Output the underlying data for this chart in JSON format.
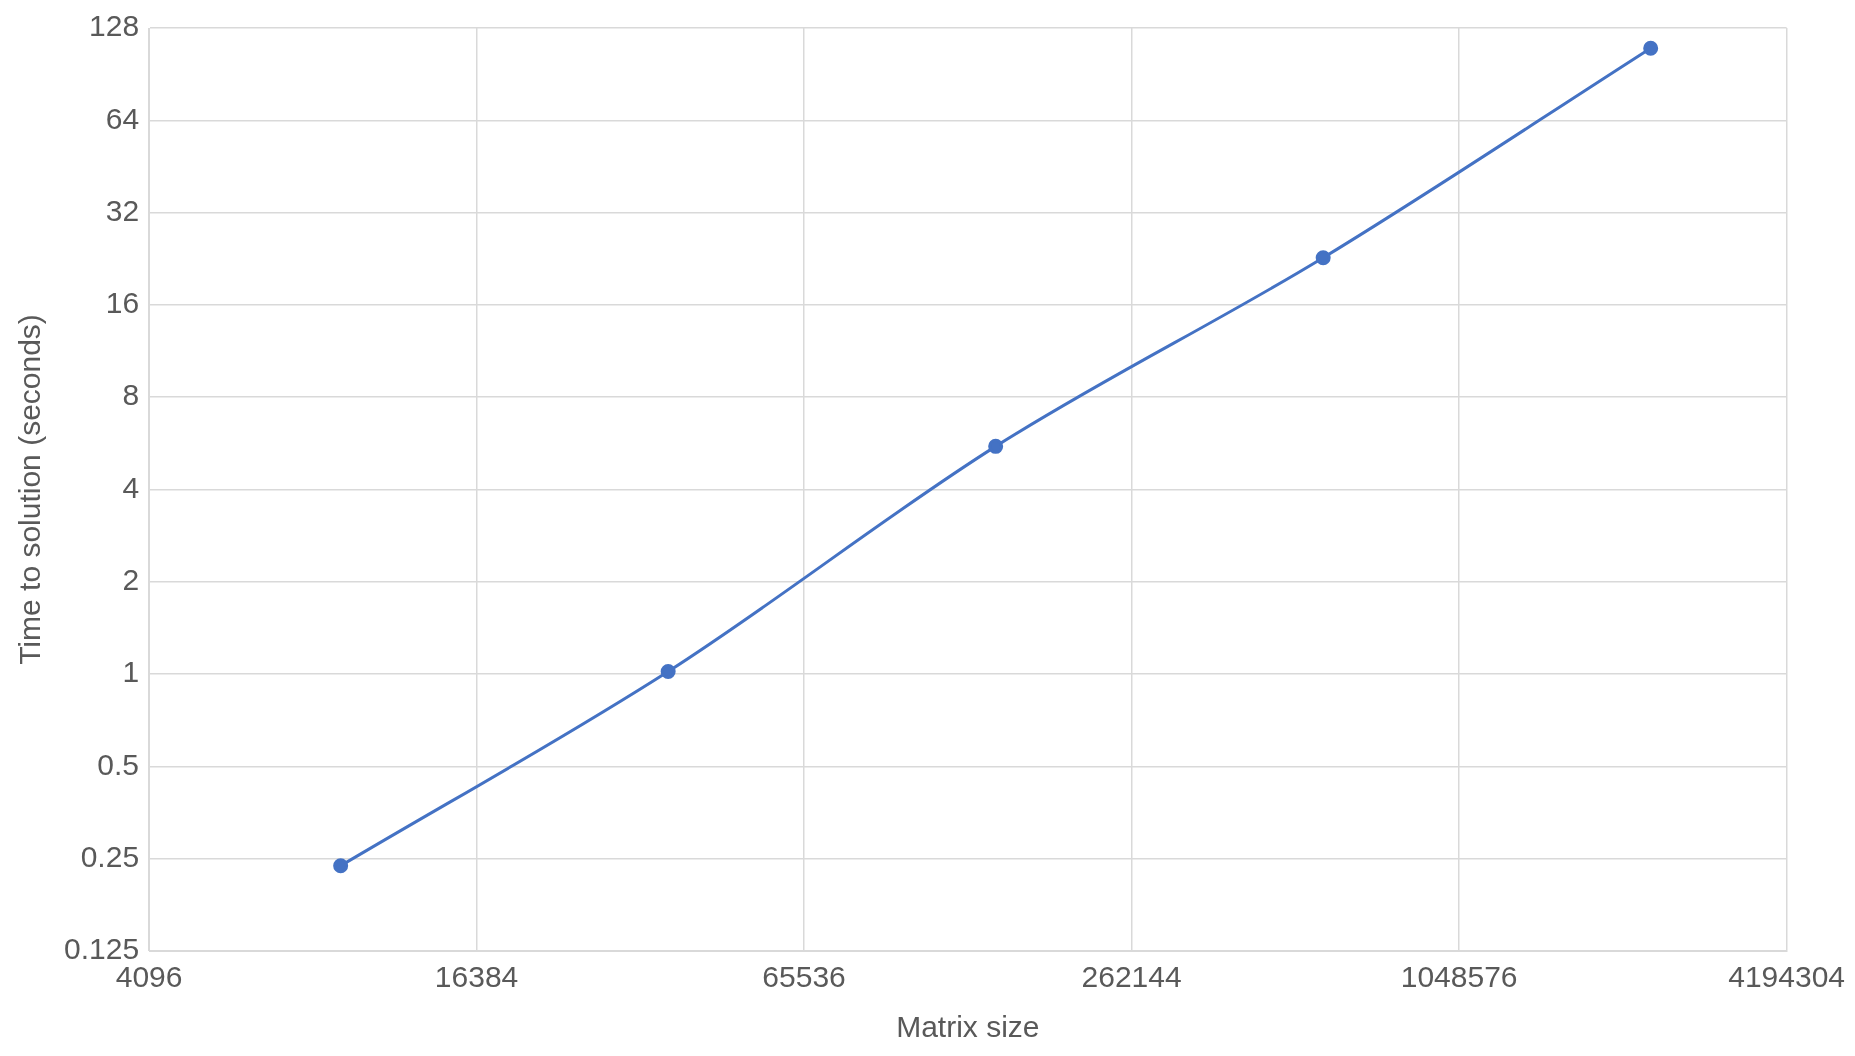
{
  "chart_data": {
    "type": "line",
    "xlabel": "Matrix size",
    "ylabel": "Time to solution (seconds)",
    "x": [
      9216,
      36864,
      147456,
      589824,
      2359296
    ],
    "series": [
      {
        "color": "#4472c4",
        "values": [
          0.237,
          1.02,
          5.53,
          22.8,
          110
        ]
      }
    ],
    "log": "xy",
    "xlim": [
      4096,
      4194304
    ],
    "xticks": [
      4096,
      16384,
      65536,
      262144,
      1048576,
      4194304
    ],
    "ylim": [
      0.125,
      128
    ],
    "yticks": [
      0.125,
      0.25,
      0.5,
      1,
      2,
      4,
      8,
      16,
      32,
      64,
      128
    ],
    "grid": true,
    "legend": false,
    "marker": "circle",
    "line_style": "solid"
  }
}
